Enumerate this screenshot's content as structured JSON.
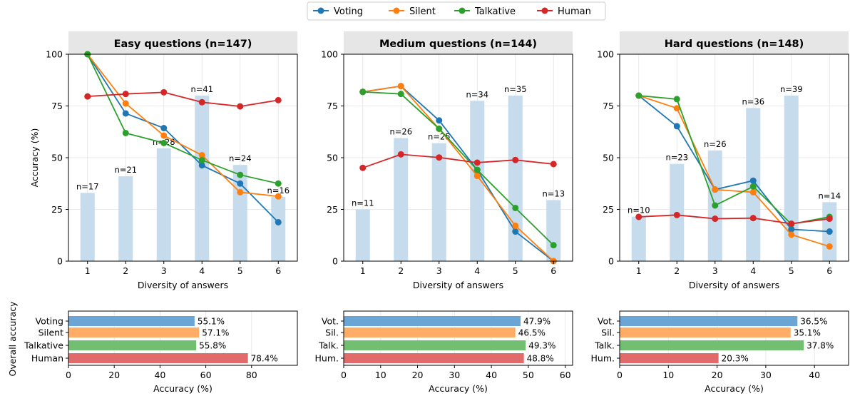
{
  "legend": {
    "items": [
      {
        "name": "Voting",
        "color": "#1f77b4"
      },
      {
        "name": "Silent",
        "color": "#ff7f0e"
      },
      {
        "name": "Talkative",
        "color": "#2ca02c"
      },
      {
        "name": "Human",
        "color": "#d62728"
      }
    ]
  },
  "bottom_ylabel": "Overall accuracy",
  "chart_data": [
    {
      "type": "line",
      "title": "Easy questions (n=147)",
      "xlabel": "Diversity of answers",
      "ylabel": "Accuracy (%)",
      "x": [
        1,
        2,
        3,
        4,
        5,
        6
      ],
      "xlim": [
        0.5,
        6.5
      ],
      "ylim": [
        0,
        100
      ],
      "yticks": [
        0,
        25,
        50,
        75,
        100
      ],
      "grid": true,
      "bars": {
        "heights": [
          33,
          41,
          54.5,
          80,
          46.5,
          31
        ],
        "labels": [
          "n=17",
          "n=21",
          "n=28",
          "n=41",
          "n=24",
          "n=16"
        ]
      },
      "series": [
        {
          "name": "Voting",
          "values": [
            100,
            71.4,
            64.3,
            46.3,
            37.5,
            18.8
          ]
        },
        {
          "name": "Silent",
          "values": [
            100,
            76.2,
            60.7,
            51.2,
            33.3,
            31.3
          ]
        },
        {
          "name": "Talkative",
          "values": [
            100,
            61.9,
            57.1,
            48.8,
            41.7,
            37.5
          ]
        },
        {
          "name": "Human",
          "values": [
            79.6,
            80.8,
            81.6,
            76.8,
            74.8,
            77.8
          ]
        }
      ]
    },
    {
      "type": "line",
      "title": "Medium questions (n=144)",
      "xlabel": "Diversity of answers",
      "ylabel": "",
      "x": [
        1,
        2,
        3,
        4,
        5,
        6
      ],
      "xlim": [
        0.5,
        6.5
      ],
      "ylim": [
        0,
        100
      ],
      "yticks": [
        0,
        25,
        50,
        75,
        100
      ],
      "grid": true,
      "bars": {
        "heights": [
          25,
          59.5,
          57,
          77.5,
          80,
          29.5
        ],
        "labels": [
          "n=11",
          "n=26",
          "n=25",
          "n=34",
          "n=35",
          "n=13"
        ]
      },
      "series": [
        {
          "name": "Voting",
          "values": [
            81.8,
            84.6,
            68.0,
            44.1,
            14.3,
            0
          ]
        },
        {
          "name": "Silent",
          "values": [
            81.8,
            84.6,
            64.0,
            41.2,
            17.1,
            0
          ]
        },
        {
          "name": "Talkative",
          "values": [
            81.8,
            80.8,
            64.0,
            44.1,
            25.7,
            7.7
          ]
        },
        {
          "name": "Human",
          "values": [
            45.1,
            51.6,
            50.1,
            47.6,
            48.9,
            46.9
          ]
        }
      ]
    },
    {
      "type": "line",
      "title": "Hard questions (n=148)",
      "xlabel": "Diversity of answers",
      "ylabel": "",
      "x": [
        1,
        2,
        3,
        4,
        5,
        6
      ],
      "xlim": [
        0.5,
        6.5
      ],
      "ylim": [
        0,
        100
      ],
      "yticks": [
        0,
        25,
        50,
        75,
        100
      ],
      "grid": true,
      "bars": {
        "heights": [
          21.5,
          47,
          53.5,
          74,
          80,
          28.5
        ],
        "labels": [
          "n=10",
          "n=23",
          "n=26",
          "n=36",
          "n=39",
          "n=14"
        ]
      },
      "series": [
        {
          "name": "Voting",
          "values": [
            80.0,
            65.2,
            34.6,
            38.9,
            15.4,
            14.3
          ]
        },
        {
          "name": "Silent",
          "values": [
            80.0,
            73.9,
            34.6,
            33.3,
            12.8,
            7.1
          ]
        },
        {
          "name": "Talkative",
          "values": [
            80.0,
            78.3,
            26.9,
            36.1,
            17.9,
            21.4
          ]
        },
        {
          "name": "Human",
          "values": [
            21.4,
            22.3,
            20.5,
            20.8,
            18.1,
            20.5
          ]
        }
      ]
    },
    {
      "type": "bar",
      "orientation": "horizontal",
      "categories": [
        "Voting",
        "Silent",
        "Talkative",
        "Human"
      ],
      "values": [
        55.1,
        57.1,
        55.8,
        78.4
      ],
      "value_labels": [
        "55.1%",
        "57.1%",
        "55.8%",
        "78.4%"
      ],
      "xlabel": "Accuracy (%)",
      "xlim": [
        0,
        100
      ],
      "xticks": [
        0,
        20,
        40,
        60,
        80
      ],
      "grid": true
    },
    {
      "type": "bar",
      "orientation": "horizontal",
      "categories": [
        "Vot.",
        "Sil.",
        "Talk.",
        "Hum."
      ],
      "values": [
        47.9,
        46.5,
        49.3,
        48.8
      ],
      "value_labels": [
        "47.9%",
        "46.5%",
        "49.3%",
        "48.8%"
      ],
      "xlabel": "Accuracy (%)",
      "xlim": [
        0,
        62
      ],
      "xticks": [
        0,
        10,
        20,
        30,
        40,
        50,
        60
      ],
      "grid": true
    },
    {
      "type": "bar",
      "orientation": "horizontal",
      "categories": [
        "Vot.",
        "Sil.",
        "Talk.",
        "Hum."
      ],
      "values": [
        36.5,
        35.1,
        37.8,
        20.3
      ],
      "value_labels": [
        "36.5%",
        "35.1%",
        "37.8%",
        "20.3%"
      ],
      "xlabel": "Accuracy (%)",
      "xlim": [
        0,
        47
      ],
      "xticks": [
        0,
        10,
        20,
        30,
        40
      ],
      "grid": true
    }
  ]
}
